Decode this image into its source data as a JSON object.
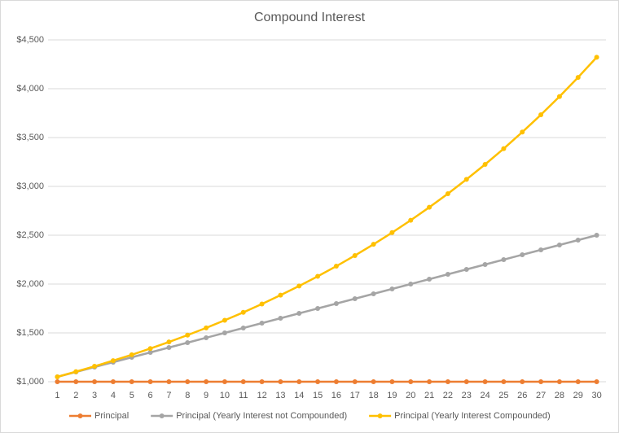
{
  "chart_data": {
    "type": "line",
    "title": "Compound Interest",
    "categories": [
      "1",
      "2",
      "3",
      "4",
      "5",
      "6",
      "7",
      "8",
      "9",
      "10",
      "11",
      "12",
      "13",
      "14",
      "15",
      "16",
      "17",
      "18",
      "19",
      "20",
      "21",
      "22",
      "23",
      "24",
      "25",
      "26",
      "27",
      "28",
      "29",
      "30"
    ],
    "series": [
      {
        "name": "Principal",
        "color": "#ed7d31",
        "values": [
          1000,
          1000,
          1000,
          1000,
          1000,
          1000,
          1000,
          1000,
          1000,
          1000,
          1000,
          1000,
          1000,
          1000,
          1000,
          1000,
          1000,
          1000,
          1000,
          1000,
          1000,
          1000,
          1000,
          1000,
          1000,
          1000,
          1000,
          1000,
          1000,
          1000
        ]
      },
      {
        "name": "Principal (Yearly Interest not Compounded)",
        "color": "#a5a5a5",
        "values": [
          1050,
          1100,
          1150,
          1200,
          1250,
          1300,
          1350,
          1400,
          1450,
          1500,
          1550,
          1600,
          1650,
          1700,
          1750,
          1800,
          1850,
          1900,
          1950,
          2000,
          2050,
          2100,
          2150,
          2200,
          2250,
          2300,
          2350,
          2400,
          2450,
          2500
        ]
      },
      {
        "name": "Principal (Yearly Interest Compounded)",
        "color": "#ffc000",
        "values": [
          1050,
          1103,
          1158,
          1216,
          1276,
          1340,
          1407,
          1477,
          1551,
          1629,
          1710,
          1796,
          1886,
          1980,
          2079,
          2183,
          2292,
          2407,
          2527,
          2653,
          2786,
          2925,
          3072,
          3225,
          3386,
          3556,
          3733,
          3920,
          4116,
          4322
        ]
      }
    ],
    "ylim": [
      1000,
      4500
    ],
    "yticks": [
      {
        "value": 1000,
        "label": "$1,000"
      },
      {
        "value": 1500,
        "label": "$1,500"
      },
      {
        "value": 2000,
        "label": "$2,000"
      },
      {
        "value": 2500,
        "label": "$2,500"
      },
      {
        "value": 3000,
        "label": "$3,000"
      },
      {
        "value": 3500,
        "label": "$3,500"
      },
      {
        "value": 4000,
        "label": "$4,000"
      },
      {
        "value": 4500,
        "label": "$4,500"
      }
    ],
    "grid": true,
    "legend": "bottom"
  }
}
